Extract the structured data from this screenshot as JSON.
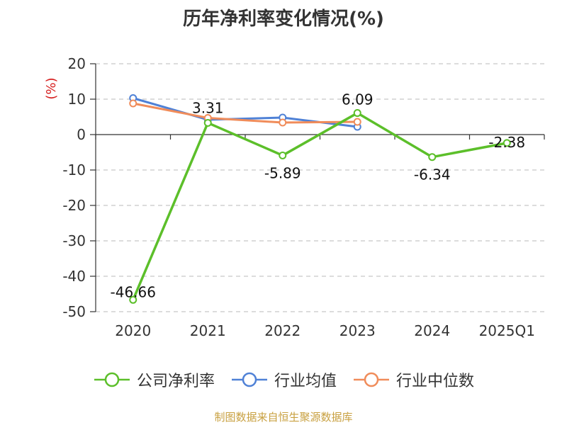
{
  "chart_data": {
    "type": "line",
    "title": "历年净利率变化情况(%)",
    "ylabel": "(%)",
    "xlabel": "",
    "categories": [
      "2020",
      "2021",
      "2022",
      "2023",
      "2024",
      "2025Q1"
    ],
    "ylim": [
      -50,
      20
    ],
    "yticks": [
      20,
      10,
      0,
      -10,
      -20,
      -30,
      -40,
      -50
    ],
    "grid": true,
    "legend_position": "bottom",
    "series": [
      {
        "name": "公司净利率",
        "color": "#5cbf2a",
        "values": [
          -46.66,
          3.31,
          -5.89,
          6.09,
          -6.34,
          -2.38
        ],
        "labels": [
          "-46.66",
          "3.31",
          "-5.89",
          "6.09",
          "-6.34",
          "-2.38"
        ]
      },
      {
        "name": "行业均值",
        "color": "#4f81d6",
        "values": [
          10.3,
          4.2,
          4.8,
          2.2,
          null,
          null
        ]
      },
      {
        "name": "行业中位数",
        "color": "#f08c5a",
        "values": [
          8.8,
          4.7,
          3.4,
          3.6,
          null,
          null
        ]
      }
    ]
  },
  "footer": {
    "source": "制图数据来自恒生聚源数据库"
  }
}
